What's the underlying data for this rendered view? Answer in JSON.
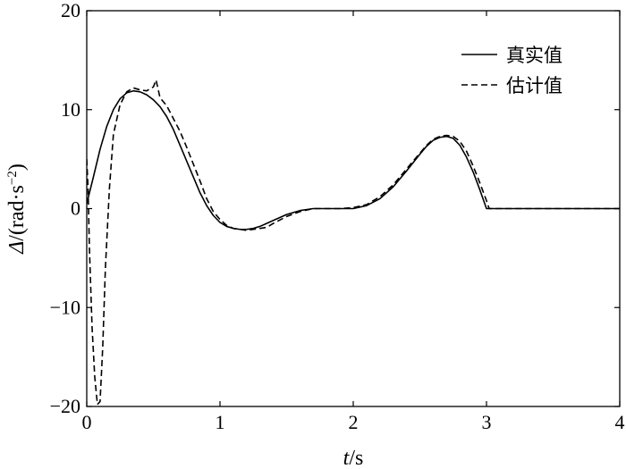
{
  "chart_data": {
    "type": "line",
    "xlabel": {
      "italic": "t",
      "rest": "/s"
    },
    "ylabel": {
      "italic": "Δ",
      "rest": "/(rad·s",
      "sup": "−2",
      "close": ")"
    },
    "xlim": [
      0,
      4
    ],
    "ylim": [
      -20,
      20
    ],
    "xticks": [
      0,
      1,
      2,
      3,
      4
    ],
    "xtick_labels": [
      "0",
      "1",
      "2",
      "3",
      "4"
    ],
    "yticks": [
      -20,
      -10,
      0,
      10,
      20
    ],
    "ytick_labels": [
      "−20",
      "−10",
      "0",
      "10",
      "20"
    ],
    "grid": false,
    "legend_position": "top-right",
    "series": [
      {
        "name": "真实值",
        "style": "solid",
        "color": "#000000",
        "x": [
          0,
          0.05,
          0.1,
          0.15,
          0.2,
          0.25,
          0.3,
          0.35,
          0.4,
          0.45,
          0.5,
          0.55,
          0.6,
          0.65,
          0.7,
          0.75,
          0.8,
          0.85,
          0.9,
          0.95,
          1.0,
          1.05,
          1.1,
          1.15,
          1.2,
          1.25,
          1.3,
          1.35,
          1.4,
          1.5,
          1.6,
          1.7,
          1.8,
          1.9,
          2.0,
          2.1,
          2.2,
          2.3,
          2.4,
          2.5,
          2.55,
          2.6,
          2.65,
          2.7,
          2.75,
          2.8,
          2.85,
          2.9,
          2.95,
          3.0,
          3.05,
          3.5,
          4.0
        ],
        "y": [
          0.5,
          3.2,
          6.0,
          8.3,
          10.0,
          11.1,
          11.7,
          11.9,
          11.8,
          11.5,
          11.0,
          10.3,
          9.3,
          8.0,
          6.4,
          4.8,
          3.2,
          1.6,
          0.3,
          -0.7,
          -1.4,
          -1.8,
          -2.0,
          -2.1,
          -2.1,
          -2.0,
          -1.8,
          -1.5,
          -1.2,
          -0.6,
          -0.2,
          0.0,
          0.0,
          0.0,
          0.0,
          0.3,
          1.0,
          2.2,
          3.8,
          5.5,
          6.3,
          6.9,
          7.2,
          7.3,
          7.1,
          6.4,
          5.2,
          3.7,
          1.9,
          0.0,
          0.0,
          0.0,
          0.0
        ]
      },
      {
        "name": "估计值",
        "style": "dashed",
        "color": "#000000",
        "x": [
          0,
          0.01,
          0.02,
          0.04,
          0.06,
          0.08,
          0.1,
          0.12,
          0.14,
          0.17,
          0.2,
          0.25,
          0.3,
          0.35,
          0.4,
          0.45,
          0.5,
          0.52,
          0.54,
          0.55,
          0.6,
          0.65,
          0.7,
          0.75,
          0.8,
          0.85,
          0.9,
          0.95,
          1.0,
          1.05,
          1.1,
          1.15,
          1.2,
          1.25,
          1.3,
          1.35,
          1.4,
          1.5,
          1.6,
          1.7,
          1.8,
          1.9,
          2.0,
          2.1,
          2.2,
          2.3,
          2.4,
          2.5,
          2.55,
          2.6,
          2.65,
          2.7,
          2.75,
          2.8,
          2.85,
          2.9,
          2.95,
          3.0,
          3.02,
          3.05,
          3.5,
          4.0
        ],
        "y": [
          5.0,
          2.0,
          -4.0,
          -12.0,
          -17.0,
          -19.8,
          -19.5,
          -14.0,
          -6.0,
          2.0,
          7.5,
          10.5,
          11.8,
          12.2,
          12.0,
          11.9,
          12.3,
          13.0,
          11.8,
          11.2,
          10.4,
          9.1,
          7.8,
          6.2,
          4.5,
          2.8,
          1.0,
          -0.3,
          -1.1,
          -1.7,
          -2.0,
          -2.1,
          -2.2,
          -2.1,
          -2.0,
          -1.9,
          -1.5,
          -0.8,
          -0.3,
          0.0,
          0.0,
          0.0,
          0.1,
          0.4,
          1.2,
          2.4,
          4.0,
          5.6,
          6.4,
          7.0,
          7.3,
          7.4,
          7.3,
          6.8,
          5.8,
          4.3,
          2.6,
          0.8,
          0.0,
          0.0,
          0.0,
          0.0
        ]
      }
    ]
  }
}
